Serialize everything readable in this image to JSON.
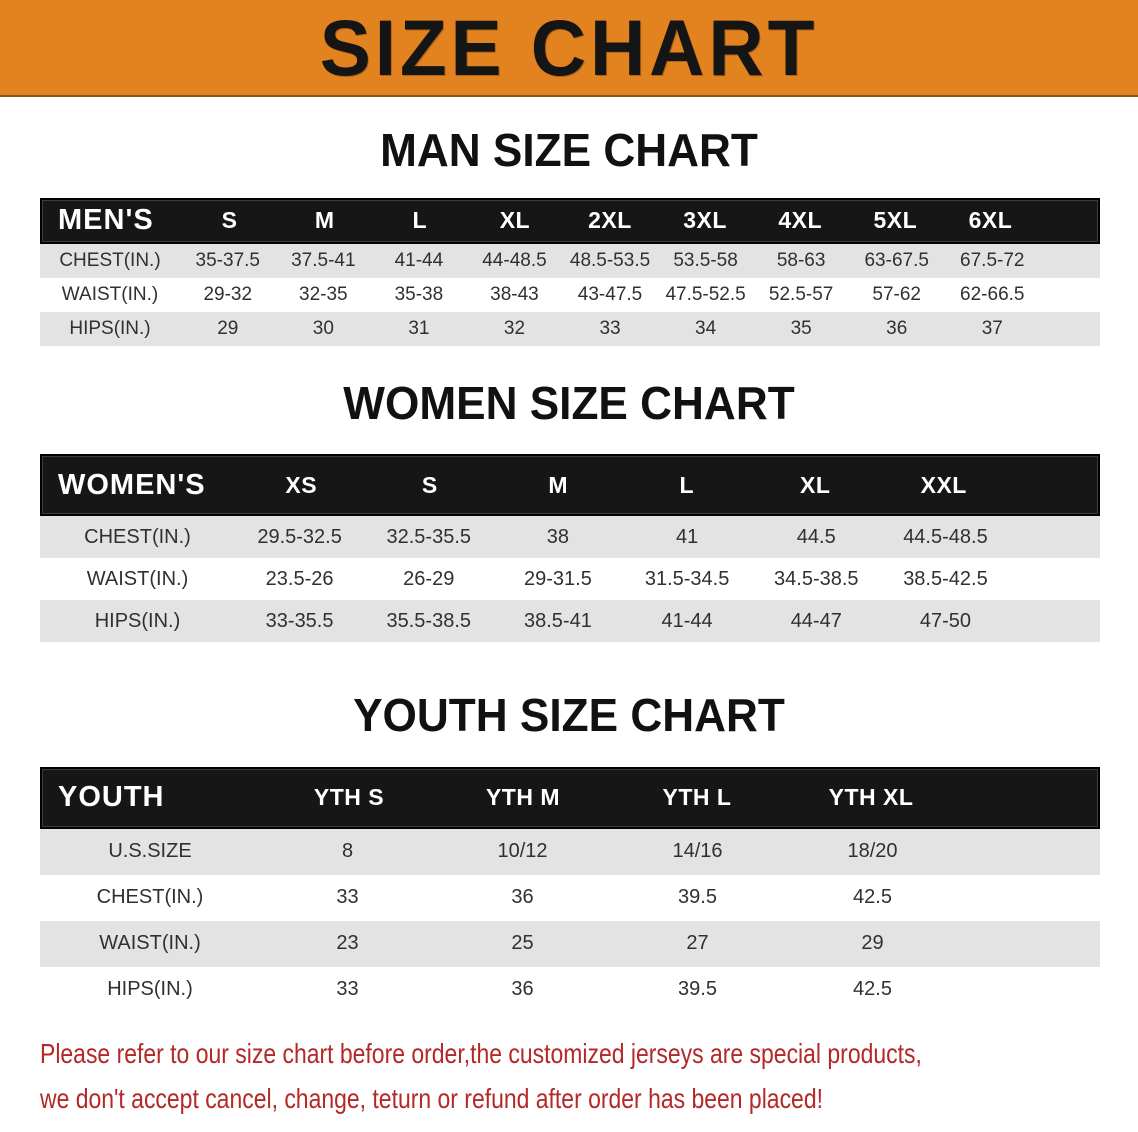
{
  "banner": {
    "title": "SIZE CHART"
  },
  "colors": {
    "banner-bg": "#e2831f",
    "banner-text": "#151515",
    "bar-bg": "#161616",
    "bar-text": "#ffffff",
    "row-shaded": "#e3e3e3",
    "row-text": "#303030",
    "heading-text": "#111111",
    "disclaimer-text": "#b42828"
  },
  "sections": [
    {
      "heading": "MAN SIZE CHART",
      "corner": "MEN'S",
      "columns": [
        "S",
        "M",
        "L",
        "XL",
        "2XL",
        "3XL",
        "4XL",
        "5XL",
        "6XL"
      ],
      "rows": [
        {
          "label": "CHEST(IN.)",
          "values": [
            "35-37.5",
            "37.5-41",
            "41-44",
            "44-48.5",
            "48.5-53.5",
            "53.5-58",
            "58-63",
            "63-67.5",
            "67.5-72"
          ]
        },
        {
          "label": "WAIST(IN.)",
          "values": [
            "29-32",
            "32-35",
            "35-38",
            "38-43",
            "43-47.5",
            "47.5-52.5",
            "52.5-57",
            "57-62",
            "62-66.5"
          ]
        },
        {
          "label": "HIPS(IN.)",
          "values": [
            "29",
            "30",
            "31",
            "32",
            "33",
            "34",
            "35",
            "36",
            "37"
          ]
        }
      ]
    },
    {
      "heading": "WOMEN SIZE CHART",
      "corner": "WOMEN'S",
      "columns": [
        "XS",
        "S",
        "M",
        "L",
        "XL",
        "XXL"
      ],
      "rows": [
        {
          "label": "CHEST(IN.)",
          "values": [
            "29.5-32.5",
            "32.5-35.5",
            "38",
            "41",
            "44.5",
            "44.5-48.5"
          ]
        },
        {
          "label": "WAIST(IN.)",
          "values": [
            "23.5-26",
            "26-29",
            "29-31.5",
            "31.5-34.5",
            "34.5-38.5",
            "38.5-42.5"
          ]
        },
        {
          "label": "HIPS(IN.)",
          "values": [
            "33-35.5",
            "35.5-38.5",
            "38.5-41",
            "41-44",
            "44-47",
            "47-50"
          ]
        }
      ]
    },
    {
      "heading": "YOUTH SIZE CHART",
      "corner": "YOUTH",
      "columns": [
        "YTH S",
        "YTH M",
        "YTH L",
        "YTH XL"
      ],
      "rows": [
        {
          "label": "U.S.SIZE",
          "values": [
            "8",
            "10/12",
            "14/16",
            "18/20"
          ]
        },
        {
          "label": "CHEST(IN.)",
          "values": [
            "33",
            "36",
            "39.5",
            "42.5"
          ]
        },
        {
          "label": "WAIST(IN.)",
          "values": [
            "23",
            "25",
            "27",
            "29"
          ]
        },
        {
          "label": "HIPS(IN.)",
          "values": [
            "33",
            "36",
            "39.5",
            "42.5"
          ]
        }
      ]
    }
  ],
  "disclaimer": {
    "line1": "Please refer to our size chart before order,the customized jerseys are special products,",
    "line2": "we don't accept cancel, change, teturn or refund after order has been placed!"
  }
}
